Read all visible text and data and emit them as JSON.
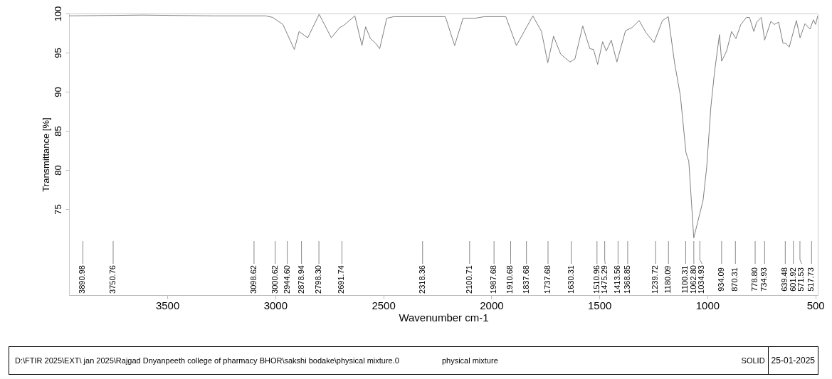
{
  "chart_data": {
    "type": "line",
    "xlabel": "Wavenumber cm-1",
    "ylabel": "Transmittance [%]",
    "xlim": [
      3955,
      489
    ],
    "xticks": [
      3500,
      3000,
      2500,
      2000,
      1500,
      1000,
      500
    ],
    "ylim": [
      64,
      100
    ],
    "yticks": [
      75,
      80,
      85,
      90,
      95,
      100
    ],
    "x": [
      3955,
      3615,
      3285,
      3045,
      3012,
      2965,
      2912,
      2890,
      2850,
      2797,
      2741,
      2702,
      2682,
      2632,
      2599,
      2582,
      2560,
      2536,
      2517,
      2484,
      2451,
      2213,
      2170,
      2131,
      2075,
      2032,
      1933,
      1884,
      1808,
      1768,
      1739,
      1712,
      1679,
      1636,
      1613,
      1577,
      1544,
      1527,
      1508,
      1485,
      1468,
      1445,
      1419,
      1379,
      1349,
      1316,
      1283,
      1247,
      1208,
      1181,
      1152,
      1125,
      1099,
      1086,
      1063,
      1020,
      1003,
      984,
      967,
      944,
      934,
      911,
      888,
      868,
      845,
      819,
      805,
      785,
      772,
      750,
      735,
      706,
      690,
      670,
      650,
      637,
      621,
      588,
      571,
      548,
      525,
      509,
      499,
      489
    ],
    "series": [
      {
        "color": "#808080",
        "values": [
          99.7,
          99.8,
          99.7,
          99.7,
          99.5,
          98.6,
          95.4,
          97.7,
          96.9,
          99.9,
          96.9,
          98.2,
          98.5,
          99.7,
          95.9,
          98.3,
          96.8,
          96.2,
          95.5,
          99.4,
          99.6,
          99.6,
          95.9,
          99.4,
          99.4,
          99.6,
          99.6,
          95.9,
          99.7,
          97.7,
          93.7,
          97.1,
          94.8,
          93.8,
          94.2,
          98.4,
          95.5,
          95.4,
          93.5,
          96.4,
          95.2,
          96.6,
          93.8,
          97.8,
          98.2,
          99.1,
          97.5,
          96.3,
          99.1,
          99.6,
          93.7,
          89.5,
          82.2,
          81.1,
          71.3,
          76.1,
          80.4,
          88.0,
          92.5,
          97.3,
          93.9,
          95.2,
          97.7,
          96.8,
          98.6,
          99.5,
          99.5,
          97.7,
          98.9,
          99.5,
          96.6,
          99.0,
          98.6,
          98.9,
          96.2,
          96.2,
          95.7,
          99.1,
          96.9,
          98.7,
          98.0,
          99.2,
          98.6,
          99.7
        ]
      }
    ],
    "ref_lines": [
      {
        "axis": "x",
        "value": 3890.98,
        "label": "3890.98"
      },
      {
        "axis": "x",
        "value": 3750.76,
        "label": "3750.76"
      },
      {
        "axis": "x",
        "value": 3098.62,
        "label": "3098.62"
      },
      {
        "axis": "x",
        "value": 3000.62,
        "label": "3000.62"
      },
      {
        "axis": "x",
        "value": 2944.6,
        "label": "2944.60"
      },
      {
        "axis": "x",
        "value": 2878.94,
        "label": "2878.94"
      },
      {
        "axis": "x",
        "value": 2798.3,
        "label": "2798.30"
      },
      {
        "axis": "x",
        "value": 2691.74,
        "label": "2691.74"
      },
      {
        "axis": "x",
        "value": 2318.36,
        "label": "2318.36"
      },
      {
        "axis": "x",
        "value": 2100.71,
        "label": "2100.71"
      },
      {
        "axis": "x",
        "value": 1987.68,
        "label": "1987.68"
      },
      {
        "axis": "x",
        "value": 1910.68,
        "label": "1910.68"
      },
      {
        "axis": "x",
        "value": 1837.68,
        "label": "1837.68"
      },
      {
        "axis": "x",
        "value": 1737.68,
        "label": "1737.68"
      },
      {
        "axis": "x",
        "value": 1630.31,
        "label": "1630.31"
      },
      {
        "axis": "x",
        "value": 1510.96,
        "label": "1510.96"
      },
      {
        "axis": "x",
        "value": 1475.29,
        "label": "1475.29"
      },
      {
        "axis": "x",
        "value": 1413.56,
        "label": "1413.56"
      },
      {
        "axis": "x",
        "value": 1368.85,
        "label": "1368.85"
      },
      {
        "axis": "x",
        "value": 1239.72,
        "label": "1239.72"
      },
      {
        "axis": "x",
        "value": 1180.09,
        "label": "1180.09"
      },
      {
        "axis": "x",
        "value": 1100.31,
        "label": "1100.31"
      },
      {
        "axis": "x",
        "value": 1062.8,
        "label": "1062.80"
      },
      {
        "axis": "x",
        "value": 1034.93,
        "label": "1034.93"
      },
      {
        "axis": "x",
        "value": 934.09,
        "label": "934.09"
      },
      {
        "axis": "x",
        "value": 870.31,
        "label": "870.31"
      },
      {
        "axis": "x",
        "value": 778.8,
        "label": "778.80"
      },
      {
        "axis": "x",
        "value": 734.93,
        "label": "734.93"
      },
      {
        "axis": "x",
        "value": 639.48,
        "label": "639.48"
      },
      {
        "axis": "x",
        "value": 601.92,
        "label": "601.92"
      },
      {
        "axis": "x",
        "value": 571.53,
        "label": "571.53"
      },
      {
        "axis": "x",
        "value": 517.73,
        "label": "517.73"
      }
    ],
    "annotations": [
      "D:\\FTIR 2025\\EXT\\ jan 2025\\Rajgad Dnyanpeeth  college of pharmacy BHOR\\sakshi bodake\\physical mixture.0",
      "physical mixture",
      "SOLID",
      "25-01-2025"
    ]
  }
}
